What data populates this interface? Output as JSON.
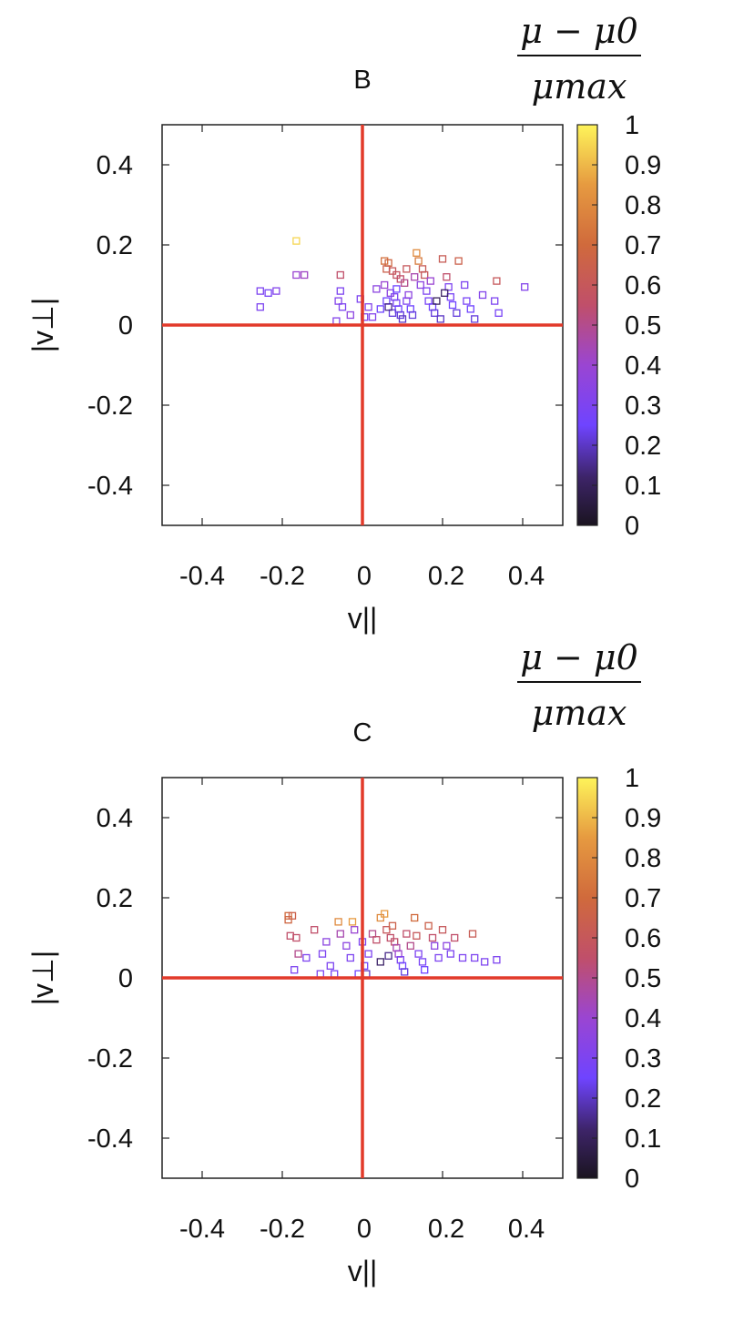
{
  "chart_data": [
    {
      "type": "scatter",
      "title": "B",
      "xlabel": "v||",
      "ylabel": "|v⊥|",
      "xlim": [
        -0.5,
        0.5
      ],
      "ylim": [
        -0.5,
        0.5
      ],
      "xticks": [
        "-0.4",
        "-0.2",
        "0",
        "0.2",
        "0.4"
      ],
      "yticks": [
        "0.4",
        "0.2",
        "0",
        "-0.2",
        "-0.4"
      ],
      "colorbar": {
        "title_numerator": "μ − μ0",
        "title_denominator": "μmax",
        "range": [
          0,
          1
        ],
        "ticks": [
          "1",
          "0.9",
          "0.8",
          "0.7",
          "0.6",
          "0.5",
          "0.4",
          "0.3",
          "0.2",
          "0.1",
          "0"
        ]
      },
      "points": [
        [
          -0.255,
          0.085,
          0.3
        ],
        [
          -0.235,
          0.08,
          0.28
        ],
        [
          -0.255,
          0.045,
          0.3
        ],
        [
          -0.215,
          0.085,
          0.32
        ],
        [
          -0.165,
          0.21,
          0.95
        ],
        [
          -0.165,
          0.125,
          0.4
        ],
        [
          -0.145,
          0.125,
          0.42
        ],
        [
          -0.055,
          0.125,
          0.55
        ],
        [
          -0.055,
          0.085,
          0.3
        ],
        [
          -0.06,
          0.06,
          0.32
        ],
        [
          -0.05,
          0.045,
          0.3
        ],
        [
          -0.03,
          0.025,
          0.35
        ],
        [
          -0.065,
          0.01,
          0.32
        ],
        [
          -0.005,
          0.065,
          0.3
        ],
        [
          0.005,
          0.02,
          0.3
        ],
        [
          0.015,
          0.045,
          0.32
        ],
        [
          0.025,
          0.02,
          0.32
        ],
        [
          0.035,
          0.09,
          0.35
        ],
        [
          0.045,
          0.04,
          0.25
        ],
        [
          0.055,
          0.16,
          0.72
        ],
        [
          0.065,
          0.155,
          0.68
        ],
        [
          0.06,
          0.14,
          0.65
        ],
        [
          0.075,
          0.135,
          0.6
        ],
        [
          0.085,
          0.125,
          0.58
        ],
        [
          0.095,
          0.115,
          0.55
        ],
        [
          0.105,
          0.105,
          0.5
        ],
        [
          0.07,
          0.08,
          0.35
        ],
        [
          0.08,
          0.07,
          0.3
        ],
        [
          0.085,
          0.055,
          0.28
        ],
        [
          0.09,
          0.04,
          0.25
        ],
        [
          0.095,
          0.025,
          0.22
        ],
        [
          0.1,
          0.015,
          0.2
        ],
        [
          0.075,
          0.03,
          0.22
        ],
        [
          0.06,
          0.06,
          0.25
        ],
        [
          0.11,
          0.06,
          0.3
        ],
        [
          0.115,
          0.075,
          0.35
        ],
        [
          0.12,
          0.04,
          0.25
        ],
        [
          0.125,
          0.025,
          0.22
        ],
        [
          0.135,
          0.18,
          0.8
        ],
        [
          0.14,
          0.16,
          0.75
        ],
        [
          0.15,
          0.14,
          0.62
        ],
        [
          0.155,
          0.125,
          0.6
        ],
        [
          0.145,
          0.1,
          0.35
        ],
        [
          0.16,
          0.085,
          0.3
        ],
        [
          0.165,
          0.06,
          0.28
        ],
        [
          0.175,
          0.045,
          0.25
        ],
        [
          0.18,
          0.03,
          0.22
        ],
        [
          0.195,
          0.015,
          0.2
        ],
        [
          0.2,
          0.165,
          0.62
        ],
        [
          0.21,
          0.12,
          0.55
        ],
        [
          0.215,
          0.095,
          0.3
        ],
        [
          0.22,
          0.07,
          0.28
        ],
        [
          0.225,
          0.05,
          0.25
        ],
        [
          0.235,
          0.03,
          0.22
        ],
        [
          0.24,
          0.16,
          0.65
        ],
        [
          0.255,
          0.1,
          0.3
        ],
        [
          0.26,
          0.06,
          0.28
        ],
        [
          0.27,
          0.04,
          0.25
        ],
        [
          0.28,
          0.015,
          0.22
        ],
        [
          0.3,
          0.075,
          0.32
        ],
        [
          0.335,
          0.11,
          0.6
        ],
        [
          0.33,
          0.06,
          0.3
        ],
        [
          0.34,
          0.03,
          0.28
        ],
        [
          0.405,
          0.095,
          0.32
        ],
        [
          0.185,
          0.06,
          0.1
        ],
        [
          0.205,
          0.08,
          0.12
        ],
        [
          0.065,
          0.045,
          0.15
        ],
        [
          0.085,
          0.09,
          0.25
        ],
        [
          0.055,
          0.1,
          0.4
        ],
        [
          0.13,
          0.12,
          0.45
        ],
        [
          0.17,
          0.11,
          0.4
        ],
        [
          0.11,
          0.14,
          0.6
        ]
      ]
    },
    {
      "type": "scatter",
      "title": "C",
      "xlabel": "v||",
      "ylabel": "|v⊥|",
      "xlim": [
        -0.5,
        0.5
      ],
      "ylim": [
        -0.5,
        0.5
      ],
      "xticks": [
        "-0.4",
        "-0.2",
        "0",
        "0.2",
        "0.4"
      ],
      "yticks": [
        "0.4",
        "0.2",
        "0",
        "-0.2",
        "-0.4"
      ],
      "colorbar": {
        "title_numerator": "μ − μ0",
        "title_denominator": "μmax",
        "range": [
          0,
          1
        ],
        "ticks": [
          "1",
          "0.9",
          "0.8",
          "0.7",
          "0.6",
          "0.5",
          "0.4",
          "0.3",
          "0.2",
          "0.1",
          "0"
        ]
      },
      "points": [
        [
          -0.185,
          0.155,
          0.7
        ],
        [
          -0.175,
          0.155,
          0.65
        ],
        [
          -0.185,
          0.145,
          0.68
        ],
        [
          -0.18,
          0.105,
          0.55
        ],
        [
          -0.165,
          0.1,
          0.55
        ],
        [
          -0.16,
          0.06,
          0.5
        ],
        [
          -0.17,
          0.02,
          0.3
        ],
        [
          -0.14,
          0.05,
          0.3
        ],
        [
          -0.12,
          0.12,
          0.55
        ],
        [
          -0.105,
          0.01,
          0.3
        ],
        [
          -0.09,
          0.09,
          0.35
        ],
        [
          -0.08,
          0.03,
          0.3
        ],
        [
          -0.06,
          0.14,
          0.8
        ],
        [
          -0.055,
          0.11,
          0.45
        ],
        [
          -0.04,
          0.08,
          0.35
        ],
        [
          -0.03,
          0.05,
          0.3
        ],
        [
          -0.02,
          0.12,
          0.4
        ],
        [
          -0.01,
          0.01,
          0.25
        ],
        [
          -0.025,
          0.14,
          0.85
        ],
        [
          0.0,
          0.09,
          0.3
        ],
        [
          0.005,
          0.03,
          0.25
        ],
        [
          0.015,
          0.06,
          0.3
        ],
        [
          0.025,
          0.11,
          0.5
        ],
        [
          0.035,
          0.095,
          0.55
        ],
        [
          0.045,
          0.15,
          0.8
        ],
        [
          0.055,
          0.16,
          0.85
        ],
        [
          0.06,
          0.12,
          0.6
        ],
        [
          0.07,
          0.1,
          0.55
        ],
        [
          0.08,
          0.09,
          0.55
        ],
        [
          0.085,
          0.075,
          0.45
        ],
        [
          0.09,
          0.06,
          0.4
        ],
        [
          0.095,
          0.045,
          0.3
        ],
        [
          0.1,
          0.03,
          0.25
        ],
        [
          0.105,
          0.015,
          0.22
        ],
        [
          0.11,
          0.11,
          0.55
        ],
        [
          0.12,
          0.08,
          0.5
        ],
        [
          0.13,
          0.15,
          0.7
        ],
        [
          0.135,
          0.105,
          0.6
        ],
        [
          0.14,
          0.06,
          0.3
        ],
        [
          0.15,
          0.04,
          0.28
        ],
        [
          0.155,
          0.02,
          0.25
        ],
        [
          0.165,
          0.13,
          0.65
        ],
        [
          0.175,
          0.1,
          0.55
        ],
        [
          0.18,
          0.08,
          0.35
        ],
        [
          0.19,
          0.05,
          0.3
        ],
        [
          0.2,
          0.12,
          0.6
        ],
        [
          0.21,
          0.08,
          0.35
        ],
        [
          0.22,
          0.06,
          0.3
        ],
        [
          0.23,
          0.1,
          0.55
        ],
        [
          0.25,
          0.05,
          0.3
        ],
        [
          0.275,
          0.11,
          0.62
        ],
        [
          0.28,
          0.05,
          0.3
        ],
        [
          0.305,
          0.04,
          0.3
        ],
        [
          0.335,
          0.045,
          0.3
        ],
        [
          0.045,
          0.04,
          0.12
        ],
        [
          0.065,
          0.055,
          0.15
        ],
        [
          -0.1,
          0.06,
          0.3
        ],
        [
          -0.07,
          0.01,
          0.28
        ],
        [
          0.01,
          0.01,
          0.2
        ],
        [
          0.075,
          0.13,
          0.65
        ]
      ]
    }
  ]
}
